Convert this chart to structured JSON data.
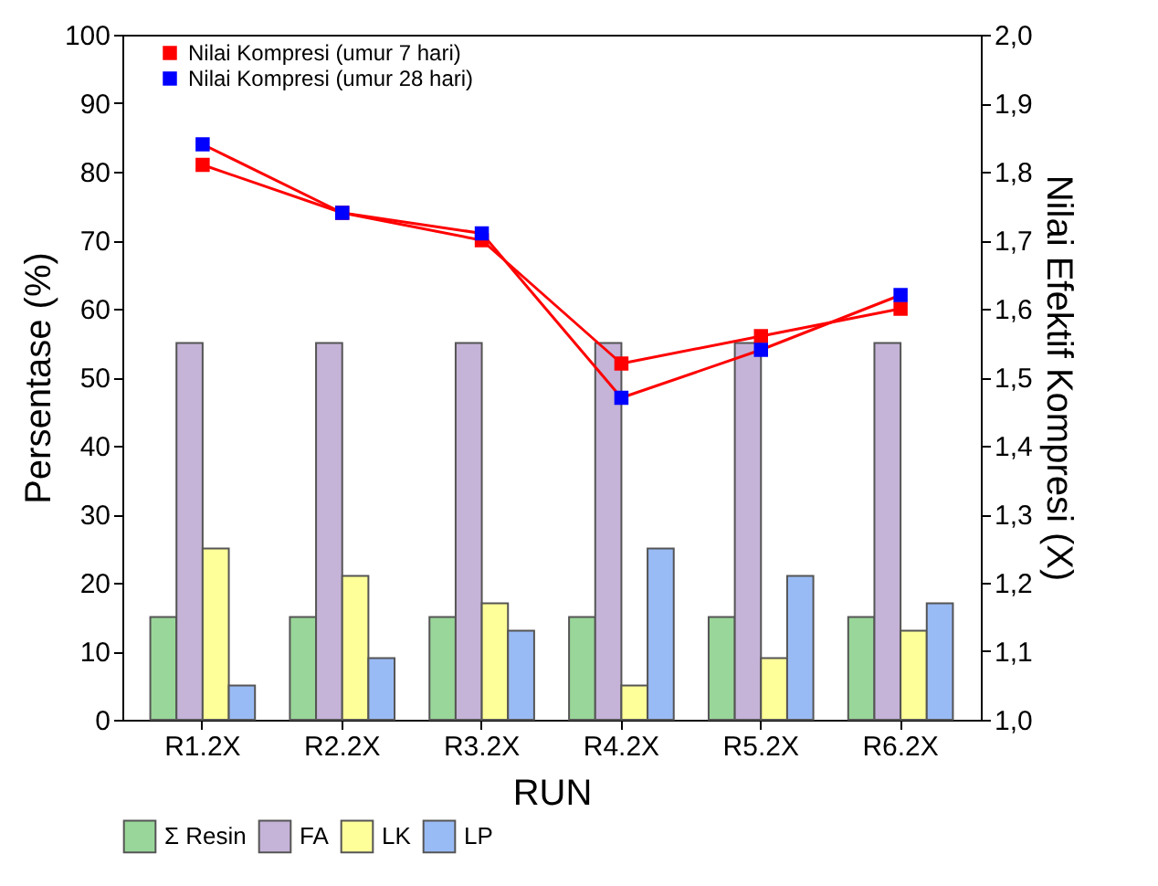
{
  "chart_data": {
    "type": "bar",
    "xlabel": "RUN",
    "ylabel": "Persentase (%)",
    "y2label": "Nilai Efektif Kompresi (X)",
    "categories": [
      "R1.2X",
      "R2.2X",
      "R3.2X",
      "R4.2X",
      "R5.2X",
      "R6.2X"
    ],
    "series": [
      {
        "name": "Σ Resin",
        "color": "#99d699",
        "values": [
          15,
          15,
          15,
          15,
          15,
          15
        ]
      },
      {
        "name": "FA",
        "color": "#c5b3d8",
        "values": [
          55,
          55,
          55,
          55,
          55,
          55
        ]
      },
      {
        "name": "LK",
        "color": "#ffff99",
        "values": [
          25,
          21,
          17,
          5,
          9,
          13
        ]
      },
      {
        "name": "LP",
        "color": "#99bbf5",
        "values": [
          5,
          9,
          13,
          25,
          21,
          17
        ]
      },
      {
        "name": "Nilai Kompresi (umur 7 hari)",
        "type": "line",
        "axis": "y2",
        "color": "#ff0000",
        "values": [
          1.81,
          1.74,
          1.7,
          1.52,
          1.56,
          1.6
        ]
      },
      {
        "name": "Nilai Kompresi (umur 28 hari)",
        "type": "line",
        "axis": "y2",
        "color": "#0000ff",
        "values": [
          1.84,
          1.74,
          1.71,
          1.47,
          1.54,
          1.62
        ]
      }
    ],
    "ylim": [
      0,
      100
    ],
    "yticks": [
      0,
      10,
      20,
      30,
      40,
      50,
      60,
      70,
      80,
      90,
      100
    ],
    "y2lim": [
      1.0,
      2.0
    ],
    "y2ticks": [
      {
        "value": 1.0,
        "label": "1,0"
      },
      {
        "value": 1.1,
        "label": "1,1"
      },
      {
        "value": 1.2,
        "label": "1,2"
      },
      {
        "value": 1.3,
        "label": "1,3"
      },
      {
        "value": 1.4,
        "label": "1,4"
      },
      {
        "value": 1.5,
        "label": "1,5"
      },
      {
        "value": 1.6,
        "label": "1,6"
      },
      {
        "value": 1.7,
        "label": "1,7"
      },
      {
        "value": 1.8,
        "label": "1,8"
      },
      {
        "value": 1.9,
        "label": "1,9"
      },
      {
        "value": 2.0,
        "label": "2,0"
      }
    ],
    "legend": "bottom",
    "marker": "square",
    "grid": false
  }
}
